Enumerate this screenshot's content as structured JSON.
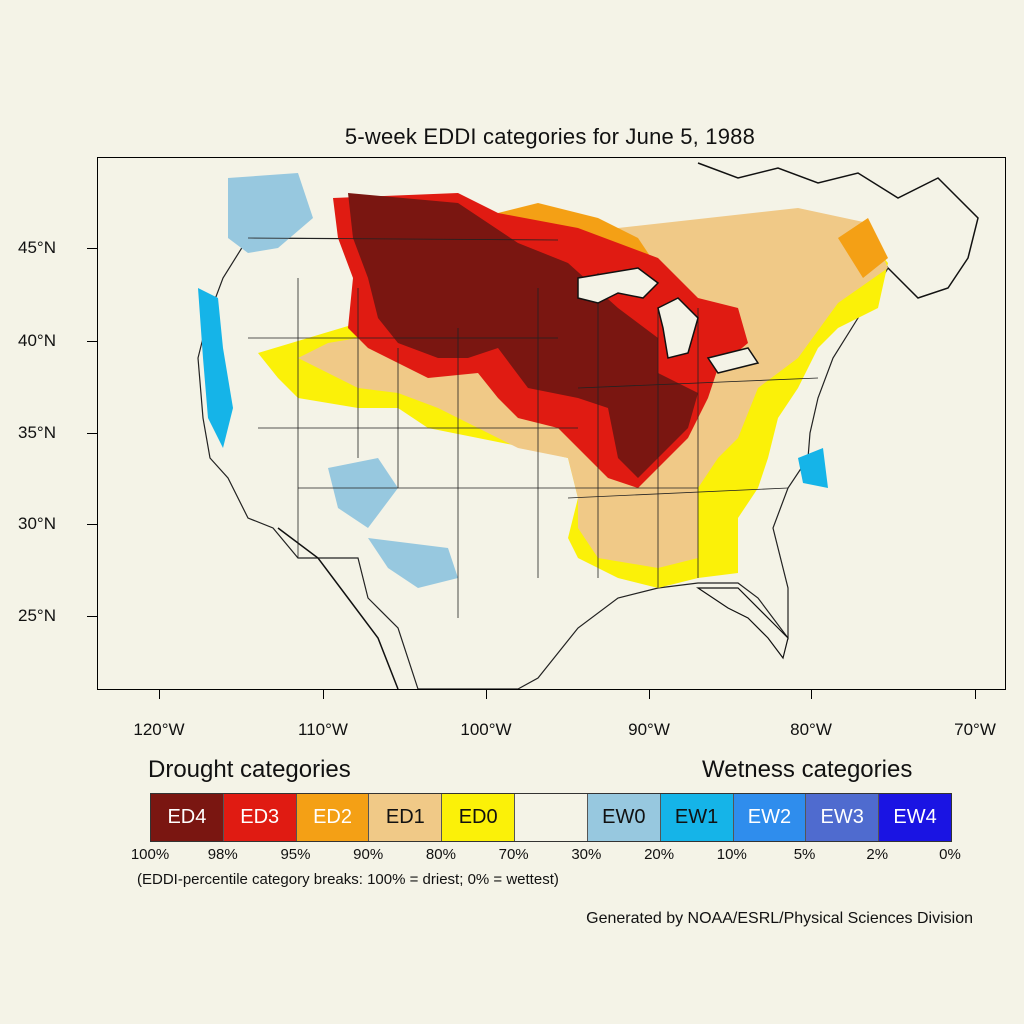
{
  "title": "5-week EDDI categories for June 5, 1988",
  "axes": {
    "y_labels": [
      "45°N",
      "40°N",
      "35°N",
      "30°N",
      "25°N"
    ],
    "x_labels": [
      "120°W",
      "110°W",
      "100°W",
      "90°W",
      "80°W",
      "70°W"
    ]
  },
  "legend": {
    "drought_heading": "Drought categories",
    "wetness_heading": "Wetness categories",
    "categories": [
      {
        "label": "ED4",
        "color": "#7a1611",
        "text_color": "#ffffff"
      },
      {
        "label": "ED3",
        "color": "#e01b12",
        "text_color": "#ffffff"
      },
      {
        "label": "ED2",
        "color": "#f4a015",
        "text_color": "#ffffff"
      },
      {
        "label": "ED1",
        "color": "#f0c987",
        "text_color": "#111111"
      },
      {
        "label": "ED0",
        "color": "#fbf108",
        "text_color": "#111111"
      },
      {
        "label": "",
        "color": "#f4f3e7",
        "text_color": "#111111"
      },
      {
        "label": "EW0",
        "color": "#97c8df",
        "text_color": "#111111"
      },
      {
        "label": "EW1",
        "color": "#15b4e8",
        "text_color": "#111111"
      },
      {
        "label": "EW2",
        "color": "#2f8ded",
        "text_color": "#ffffff"
      },
      {
        "label": "EW3",
        "color": "#4f6bcf",
        "text_color": "#ffffff"
      },
      {
        "label": "EW4",
        "color": "#1a14e3",
        "text_color": "#ffffff"
      }
    ],
    "percent_breaks": [
      "100%",
      "98%",
      "95%",
      "90%",
      "80%",
      "70%",
      "30%",
      "20%",
      "10%",
      "5%",
      "2%",
      "0%"
    ],
    "note": "(EDDI-percentile category breaks: 100% = driest; 0% = wettest)"
  },
  "credit": "Generated by NOAA/ESRL/Physical Sciences Division"
}
